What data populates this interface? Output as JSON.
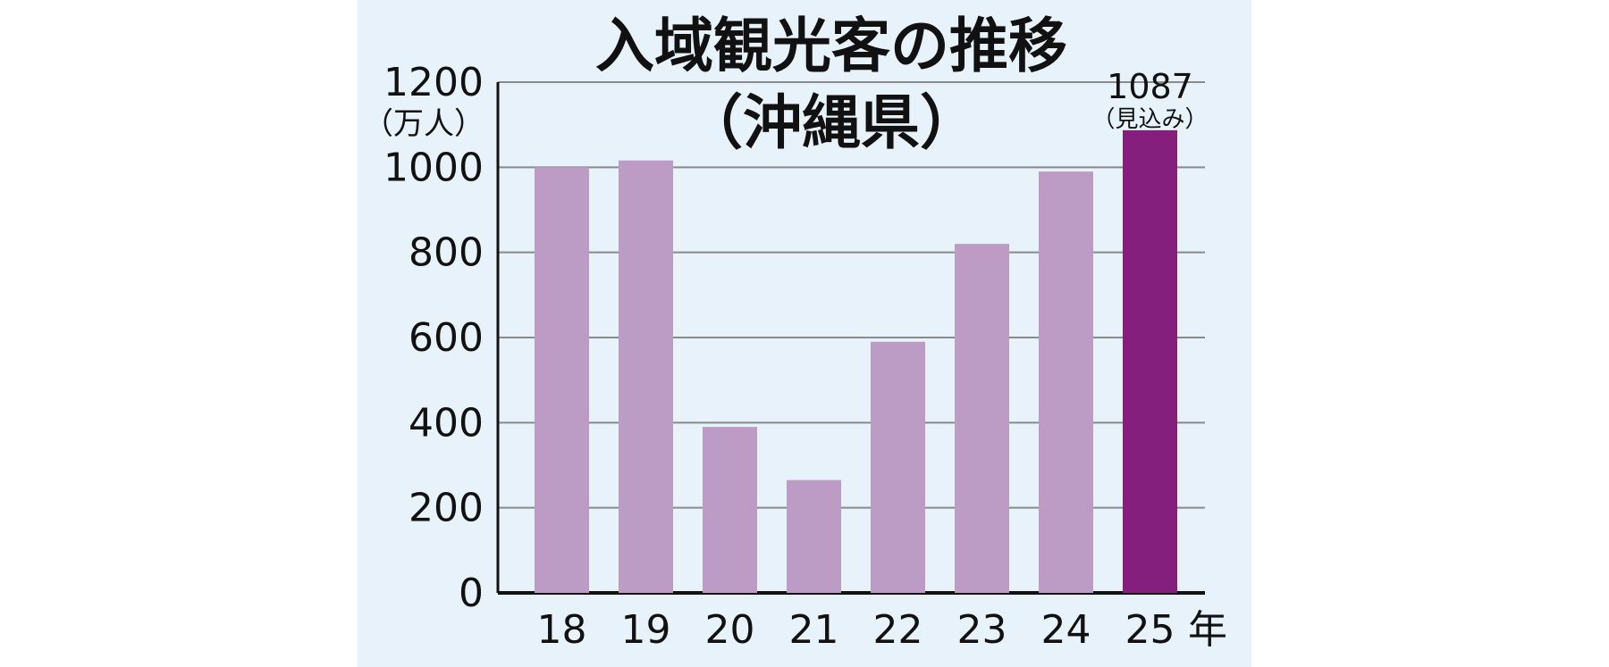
{
  "chart_data": {
    "type": "bar",
    "title": "入域観光客の推移",
    "subtitle": "（沖縄県）",
    "ylabel": "（万人）",
    "xlabel": "年",
    "ylim": [
      0,
      1200
    ],
    "yticks": [
      0,
      200,
      400,
      600,
      800,
      1000,
      1200
    ],
    "categories": [
      "18",
      "19",
      "20",
      "21",
      "22",
      "23",
      "24",
      "25"
    ],
    "values": [
      1000,
      1016,
      390,
      265,
      590,
      820,
      990,
      1087
    ],
    "grid": true,
    "highlight_index": 7,
    "annotation": {
      "value": "1087",
      "note": "（見込み）"
    }
  },
  "colors": {
    "background": "#e8f2fb",
    "bar": "#bc9cc5",
    "bar_highlight": "#841f7e",
    "grid": "#8a8a8a",
    "axis": "#111111"
  }
}
